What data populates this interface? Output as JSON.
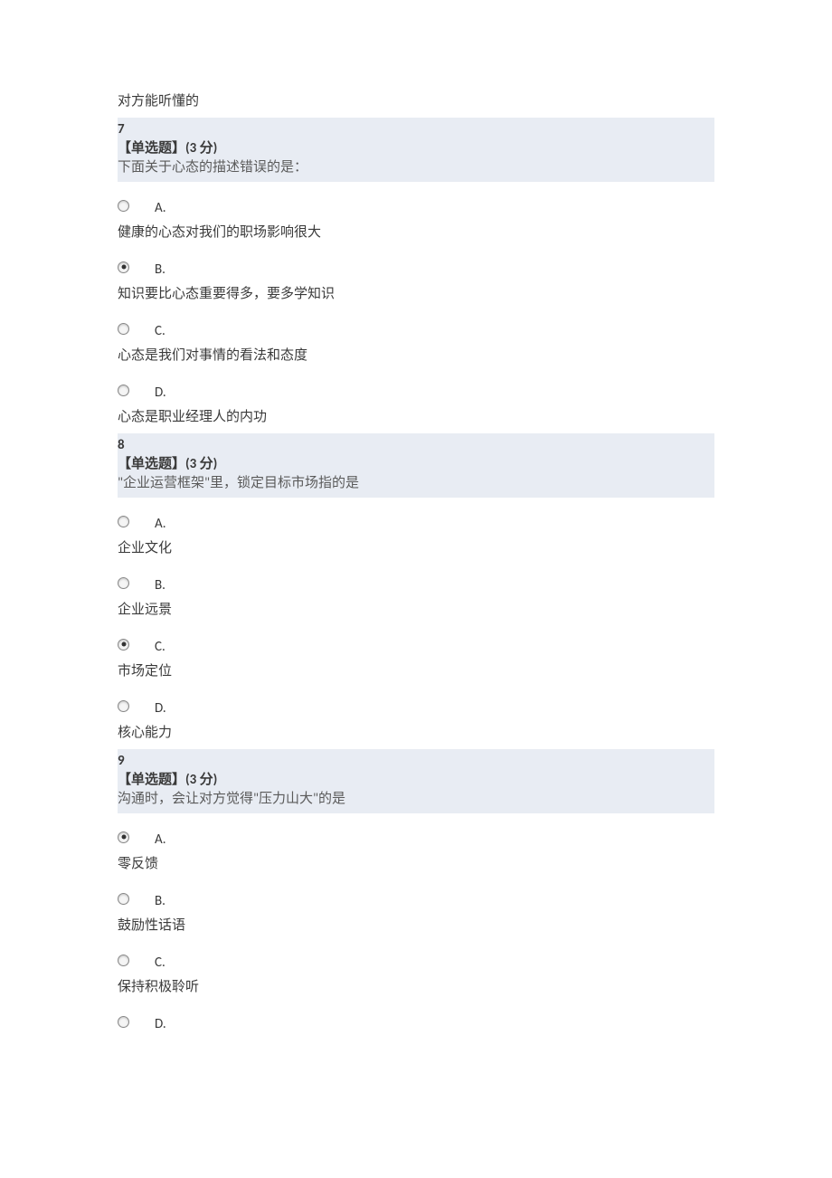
{
  "intro_text": "对方能听懂的",
  "questions": [
    {
      "number": "7",
      "type_label": "【单选题】(3 分)",
      "prompt": "下面关于心态的描述错误的是：",
      "selected_index": 1,
      "options": [
        {
          "letter": "A.",
          "text": "健康的心态对我们的职场影响很大"
        },
        {
          "letter": "B.",
          "text": "知识要比心态重要得多，要多学知识"
        },
        {
          "letter": "C.",
          "text": "心态是我们对事情的看法和态度"
        },
        {
          "letter": "D.",
          "text": "心态是职业经理人的内功"
        }
      ]
    },
    {
      "number": "8",
      "type_label": "【单选题】(3 分)",
      "prompt": "\"企业运营框架\"里，锁定目标市场指的是",
      "selected_index": 2,
      "options": [
        {
          "letter": "A.",
          "text": "企业文化"
        },
        {
          "letter": "B.",
          "text": "企业远景"
        },
        {
          "letter": "C.",
          "text": "市场定位"
        },
        {
          "letter": "D.",
          "text": "核心能力"
        }
      ]
    },
    {
      "number": "9",
      "type_label": "【单选题】(3 分)",
      "prompt": "沟通时，会让对方觉得\"压力山大\"的是",
      "selected_index": 0,
      "options": [
        {
          "letter": "A.",
          "text": "零反馈"
        },
        {
          "letter": "B.",
          "text": "鼓励性话语"
        },
        {
          "letter": "C.",
          "text": "保持积极聆听"
        },
        {
          "letter": "D.",
          "text": ""
        }
      ]
    }
  ]
}
